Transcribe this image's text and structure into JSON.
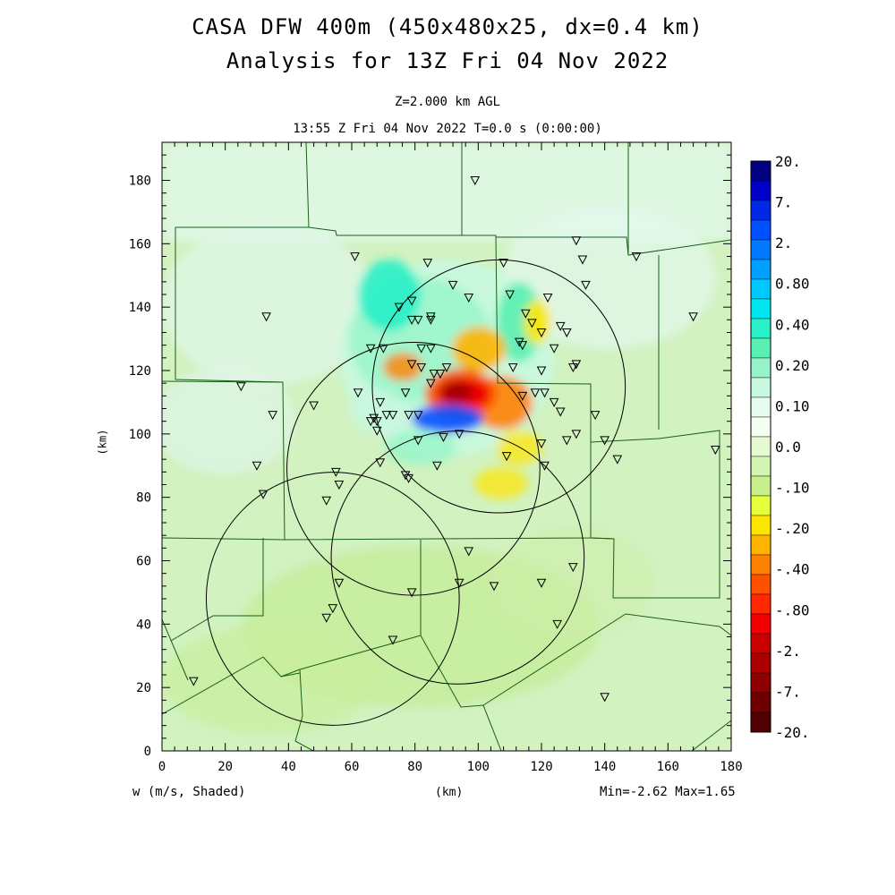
{
  "title": {
    "line1": "CASA DFW 400m (450x480x25, dx=0.4 km)",
    "line2": "Analysis for 13Z Fri 04 Nov 2022"
  },
  "subtitle": {
    "level": "Z=2.000 km AGL",
    "time": "13:55 Z Fri 04 Nov 2022    T=0.0 s (0:00:00)"
  },
  "footer": {
    "field": "w (m/s, Shaded)",
    "xunit": "(km)",
    "minmax": "Min=-2.62 Max=1.65"
  },
  "map": {
    "xlabel": "(km)",
    "ylabel": "(km)",
    "xrange": [
      0,
      180
    ],
    "yrange": [
      0,
      192
    ],
    "xticks": [
      "0",
      "20",
      "40",
      "60",
      "80",
      "100",
      "120",
      "140",
      "160",
      "180"
    ],
    "yticks": [
      "0",
      "20",
      "40",
      "60",
      "80",
      "100",
      "120",
      "140",
      "160",
      "180"
    ],
    "background_color": "#d2f2c0",
    "radar_circles": [
      {
        "x": 106.5,
        "y": 115,
        "r": 40
      },
      {
        "x": 79.5,
        "y": 89,
        "r": 40
      },
      {
        "x": 93.5,
        "y": 61,
        "r": 40
      },
      {
        "x": 54,
        "y": 48,
        "r": 40
      }
    ],
    "stations": [
      [
        99,
        180
      ],
      [
        131,
        161
      ],
      [
        108,
        154
      ],
      [
        61,
        156
      ],
      [
        84,
        154
      ],
      [
        133,
        155
      ],
      [
        150,
        156
      ],
      [
        134,
        147
      ],
      [
        92,
        147
      ],
      [
        110,
        144
      ],
      [
        122,
        143
      ],
      [
        97,
        143
      ],
      [
        79,
        142
      ],
      [
        75,
        140
      ],
      [
        115,
        138
      ],
      [
        85,
        137
      ],
      [
        33,
        137
      ],
      [
        168,
        137
      ],
      [
        79,
        136
      ],
      [
        81,
        136
      ],
      [
        85,
        136
      ],
      [
        117,
        135
      ],
      [
        126,
        134
      ],
      [
        120,
        132
      ],
      [
        128,
        132
      ],
      [
        82,
        127
      ],
      [
        85,
        127
      ],
      [
        113,
        129
      ],
      [
        114,
        128
      ],
      [
        66,
        127
      ],
      [
        70,
        127
      ],
      [
        124,
        127
      ],
      [
        79,
        122
      ],
      [
        82,
        121
      ],
      [
        90,
        121
      ],
      [
        120,
        120
      ],
      [
        111,
        121
      ],
      [
        131,
        122
      ],
      [
        86,
        119
      ],
      [
        88,
        119
      ],
      [
        130,
        121
      ],
      [
        85,
        116
      ],
      [
        25,
        115
      ],
      [
        77,
        113
      ],
      [
        62,
        113
      ],
      [
        118,
        113
      ],
      [
        121,
        113
      ],
      [
        114,
        112
      ],
      [
        124,
        110
      ],
      [
        69,
        110
      ],
      [
        48,
        109
      ],
      [
        126,
        107
      ],
      [
        35,
        106
      ],
      [
        67,
        105
      ],
      [
        71,
        106
      ],
      [
        73,
        106
      ],
      [
        137,
        106
      ],
      [
        81,
        106
      ],
      [
        78,
        106
      ],
      [
        66,
        104
      ],
      [
        68,
        104
      ],
      [
        68,
        101
      ],
      [
        94,
        100
      ],
      [
        131,
        100
      ],
      [
        128,
        98
      ],
      [
        140,
        98
      ],
      [
        81,
        98
      ],
      [
        89,
        99
      ],
      [
        120,
        97
      ],
      [
        144,
        92
      ],
      [
        109,
        93
      ],
      [
        69,
        91
      ],
      [
        30,
        90
      ],
      [
        175,
        95
      ],
      [
        87,
        90
      ],
      [
        121,
        90
      ],
      [
        55,
        88
      ],
      [
        77,
        87
      ],
      [
        56,
        84
      ],
      [
        78,
        86
      ],
      [
        32,
        81
      ],
      [
        52,
        79
      ],
      [
        97,
        63
      ],
      [
        130,
        58
      ],
      [
        56,
        53
      ],
      [
        94,
        53
      ],
      [
        105,
        52
      ],
      [
        120,
        53
      ],
      [
        79,
        50
      ],
      [
        54,
        45
      ],
      [
        52,
        42
      ],
      [
        125,
        40
      ],
      [
        73,
        35
      ],
      [
        10,
        22
      ],
      [
        140,
        17
      ]
    ]
  },
  "colorbar": {
    "labels": [
      "20.",
      "7.",
      "2.",
      "0.80",
      "0.40",
      "0.20",
      "0.10",
      "0.0",
      "-.10",
      "-.20",
      "-.40",
      "-.80",
      "-2.",
      "-7.",
      "-20."
    ],
    "colors": [
      "#000080",
      "#0000c8",
      "#0028e6",
      "#0050ff",
      "#0078ff",
      "#00a0ff",
      "#00c8ff",
      "#00e6f0",
      "#28f0c8",
      "#5af0b4",
      "#96f5c8",
      "#c8f8e0",
      "#e6fcf0",
      "#f5fff0",
      "#e6fad2",
      "#d2f5b4",
      "#c8f08c",
      "#e6ff3c",
      "#ffe600",
      "#ffb400",
      "#ff8200",
      "#ff5000",
      "#ff2800",
      "#f00000",
      "#c80000",
      "#aa0000",
      "#8c0000",
      "#6e0000",
      "#500000"
    ]
  }
}
